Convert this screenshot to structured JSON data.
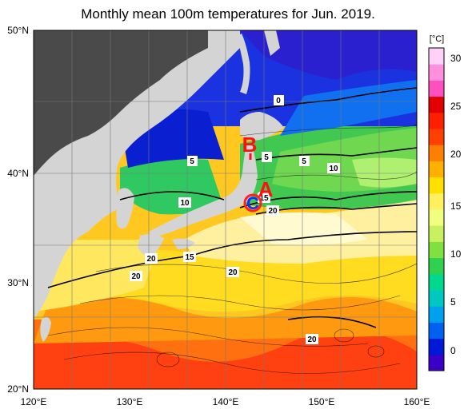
{
  "title": "Monthly mean 100m temperatures for Jun. 2019.",
  "lat_labels": [
    "50°N",
    "40°N",
    "30°N",
    "20°N"
  ],
  "lon_labels": [
    "120°E",
    "130°E",
    "140°E",
    "150°E",
    "160°E"
  ],
  "colorbar": {
    "unit": "[°C]",
    "ticks": [
      "30",
      "25",
      "20",
      "15",
      "10",
      "5",
      "0"
    ],
    "colors": [
      "#3a00c8",
      "#0018d8",
      "#0060f0",
      "#00a0f0",
      "#00c8c0",
      "#00d890",
      "#30d050",
      "#80e040",
      "#c8f060",
      "#f0ff80",
      "#fff060",
      "#ffe000",
      "#ffb000",
      "#ff8000",
      "#ff4000",
      "#ff2000",
      "#e00000",
      "#ff50c0",
      "#ff90e0",
      "#ffd0f8"
    ]
  },
  "contour_labels": [
    "0",
    "5",
    "5",
    "5",
    "5",
    "10",
    "10",
    "15",
    "15",
    "20",
    "20",
    "20",
    "20",
    "20"
  ],
  "markers": {
    "a": "A",
    "b": "B",
    "c": "C"
  },
  "colors": {
    "land": "#d4d4d4",
    "marker_red": "#ff1010",
    "marker_blue": "#1030ff"
  }
}
